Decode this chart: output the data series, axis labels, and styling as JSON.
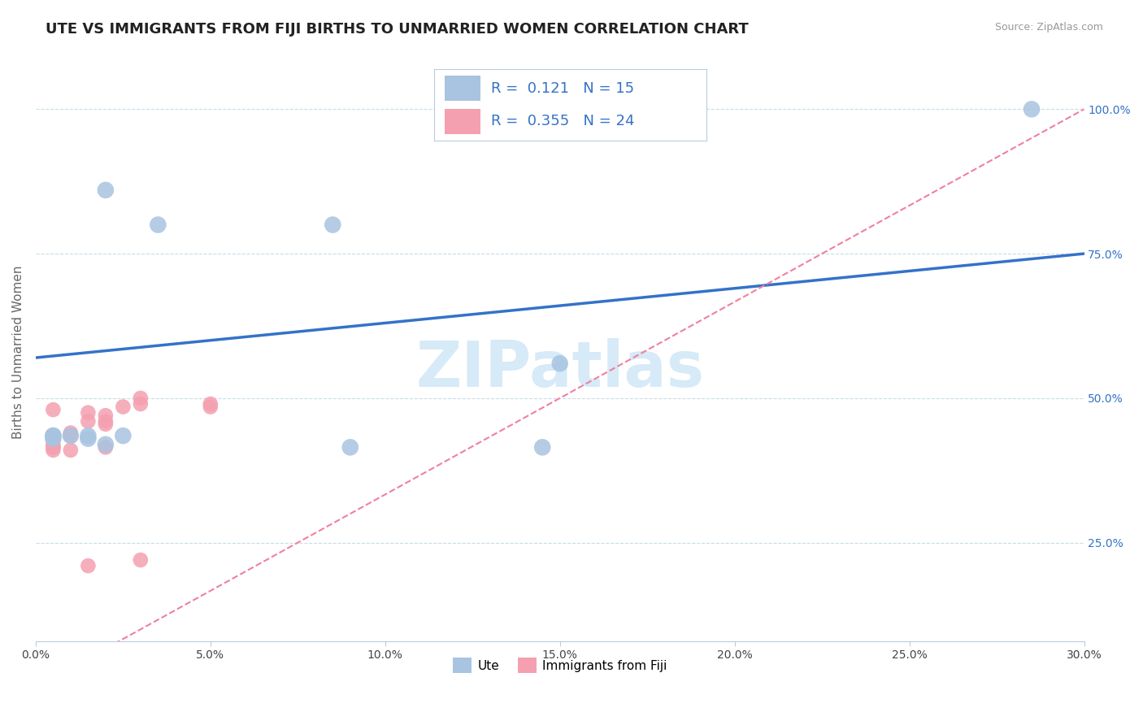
{
  "title": "UTE VS IMMIGRANTS FROM FIJI BIRTHS TO UNMARRIED WOMEN CORRELATION CHART",
  "source": "Source: ZipAtlas.com",
  "ylabel": "Births to Unmarried Women",
  "xlim": [
    0.0,
    0.3
  ],
  "ylim": [
    0.08,
    1.08
  ],
  "xtick_labels": [
    "0.0%",
    "5.0%",
    "10.0%",
    "15.0%",
    "20.0%",
    "25.0%",
    "30.0%"
  ],
  "xtick_values": [
    0.0,
    0.05,
    0.1,
    0.15,
    0.2,
    0.25,
    0.3
  ],
  "ytick_labels": [
    "25.0%",
    "50.0%",
    "75.0%",
    "100.0%"
  ],
  "ytick_values": [
    0.25,
    0.5,
    0.75,
    1.0
  ],
  "ute_color": "#a8c4e0",
  "fiji_color": "#f4a0b0",
  "trendline_ute_color": "#3472c8",
  "trendline_fiji_color": "#f080a0",
  "watermark_color": "#d6eaf8",
  "legend_r_color": "#3472c8",
  "ute_r": 0.121,
  "ute_n": 15,
  "fiji_r": 0.355,
  "fiji_n": 24,
  "ute_trendline": [
    0.57,
    0.75
  ],
  "fiji_trendline": [
    0.0,
    1.0
  ],
  "ute_points_x": [
    0.02,
    0.035,
    0.085,
    0.15,
    0.005,
    0.005,
    0.01,
    0.015,
    0.02,
    0.025,
    0.005,
    0.015,
    0.09,
    0.145,
    0.285
  ],
  "ute_points_y": [
    0.86,
    0.8,
    0.8,
    0.56,
    0.435,
    0.435,
    0.435,
    0.435,
    0.42,
    0.435,
    0.43,
    0.43,
    0.415,
    0.415,
    1.0
  ],
  "fiji_points_x": [
    0.005,
    0.005,
    0.005,
    0.005,
    0.005,
    0.005,
    0.005,
    0.01,
    0.01,
    0.015,
    0.015,
    0.02,
    0.02,
    0.02,
    0.025,
    0.03,
    0.03,
    0.05,
    0.05,
    0.005,
    0.01,
    0.03,
    0.015,
    0.02
  ],
  "fiji_points_y": [
    0.435,
    0.43,
    0.43,
    0.42,
    0.415,
    0.415,
    0.41,
    0.44,
    0.435,
    0.475,
    0.46,
    0.47,
    0.46,
    0.455,
    0.485,
    0.49,
    0.5,
    0.49,
    0.485,
    0.48,
    0.41,
    0.22,
    0.21,
    0.415
  ],
  "grid_color": "#c8dce8",
  "background_color": "#ffffff",
  "title_fontsize": 13,
  "axis_label_fontsize": 11,
  "tick_fontsize": 10,
  "legend_fontsize": 13
}
